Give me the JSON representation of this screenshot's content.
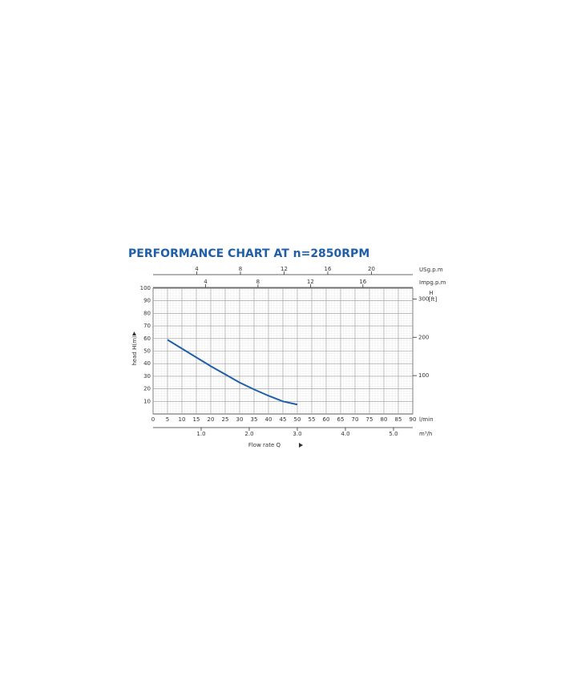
{
  "chart_data": {
    "type": "line",
    "title": "PERFORMANCE CHART AT n=2850RPM",
    "xlabel": "Flow rate Q",
    "xunit": "l/min",
    "ylabel": "head H(m)",
    "x": [
      5,
      10,
      15,
      20,
      25,
      30,
      35,
      40,
      45,
      50
    ],
    "series": [
      {
        "name": "H",
        "color": "#1f5fa8",
        "values": [
          59,
          52,
          45,
          38,
          31.5,
          25,
          19.5,
          14.5,
          10,
          7.5
        ]
      }
    ],
    "xlim": [
      0,
      90
    ],
    "xticks": [
      0,
      5,
      10,
      15,
      20,
      25,
      30,
      35,
      40,
      45,
      50,
      55,
      60,
      65,
      70,
      75,
      80,
      85,
      90
    ],
    "ylim": [
      0,
      100
    ],
    "yticks": [
      10,
      20,
      30,
      40,
      50,
      60,
      70,
      80,
      90,
      100
    ],
    "y2label": "H",
    "y2unit": "[ft]",
    "y2lim": [
      0,
      328
    ],
    "y2ticks": [
      100,
      200,
      300
    ],
    "grid": true,
    "secondary_x_axes": [
      {
        "label": "USg.p.m",
        "position": "top",
        "xlim": [
          0,
          23.78
        ],
        "xticks": [
          4,
          8,
          12,
          16,
          20
        ]
      },
      {
        "label": "Impg.p.m",
        "position": "top",
        "xlim": [
          0,
          19.8
        ],
        "xticks": [
          4,
          8,
          12,
          16
        ]
      },
      {
        "label": "m³/h",
        "position": "bottom",
        "xlim": [
          0,
          5.4
        ],
        "xticks": [
          {
            "value": 1,
            "label": "1.0"
          },
          {
            "value": 2,
            "label": "2.0"
          },
          {
            "value": 3,
            "label": "3.0"
          },
          {
            "value": 4,
            "label": "4.0"
          },
          {
            "value": 5,
            "label": "5.0"
          }
        ]
      }
    ]
  }
}
